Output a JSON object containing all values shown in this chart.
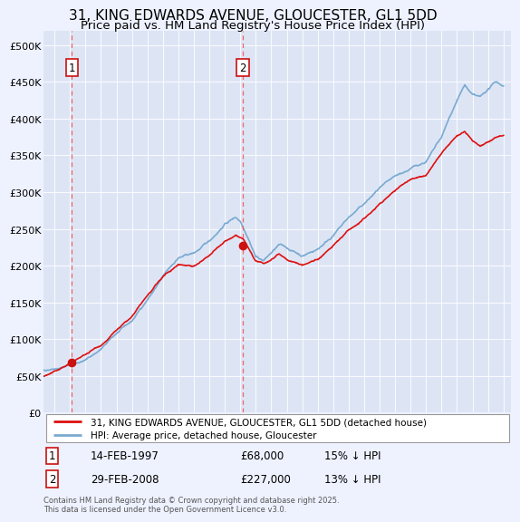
{
  "title": "31, KING EDWARDS AVENUE, GLOUCESTER, GL1 5DD",
  "subtitle": "Price paid vs. HM Land Registry's House Price Index (HPI)",
  "title_fontsize": 11,
  "subtitle_fontsize": 9.5,
  "background_color": "#eef2ff",
  "plot_bg_color": "#dde5f5",
  "hpi_color": "#7aaad0",
  "price_color": "#dd1111",
  "vline_color": "#ee6666",
  "marker_color": "#cc1111",
  "purchase1_year": 1997.12,
  "purchase1_price": 68000,
  "purchase2_year": 2008.17,
  "purchase2_price": 227000,
  "legend_label_price": "31, KING EDWARDS AVENUE, GLOUCESTER, GL1 5DD (detached house)",
  "legend_label_hpi": "HPI: Average price, detached house, Gloucester",
  "purchase1_date": "14-FEB-1997",
  "purchase1_amount": "£68,000",
  "purchase1_hpi_diff": "15% ↓ HPI",
  "purchase2_date": "29-FEB-2008",
  "purchase2_amount": "£227,000",
  "purchase2_hpi_diff": "13% ↓ HPI",
  "footnote": "Contains HM Land Registry data © Crown copyright and database right 2025.\nThis data is licensed under the Open Government Licence v3.0.",
  "ylim": [
    0,
    520000
  ],
  "yticks": [
    0,
    50000,
    100000,
    150000,
    200000,
    250000,
    300000,
    350000,
    400000,
    450000,
    500000
  ],
  "ytick_labels": [
    "£0",
    "£50K",
    "£100K",
    "£150K",
    "£200K",
    "£250K",
    "£300K",
    "£350K",
    "£400K",
    "£450K",
    "£500K"
  ],
  "xmin": 1995.3,
  "xmax": 2025.5
}
